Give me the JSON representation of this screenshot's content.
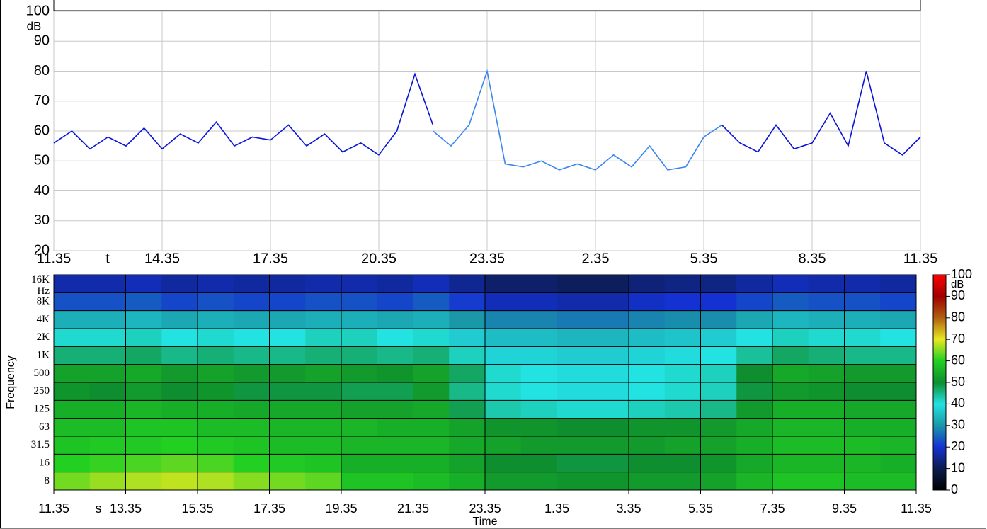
{
  "chart_data": [
    {
      "type": "line",
      "xlim": [
        0,
        24
      ],
      "xticks": [
        {
          "value": 0,
          "label": "11.35"
        },
        {
          "value": 3,
          "label": "14.35"
        },
        {
          "value": 6,
          "label": "17.35"
        },
        {
          "value": 9,
          "label": "20.35"
        },
        {
          "value": 12,
          "label": "23.35"
        },
        {
          "value": 15,
          "label": "2.35"
        },
        {
          "value": 18,
          "label": "5.35"
        },
        {
          "value": 21,
          "label": "8.35"
        },
        {
          "value": 24,
          "label": "11.35"
        }
      ],
      "x_unit": "t",
      "ylim": [
        20,
        100
      ],
      "yticks": [
        20,
        30,
        40,
        50,
        60,
        70,
        80,
        90,
        100
      ],
      "y_unit": "dB",
      "grid": true,
      "series": [
        {
          "color": "#0a14d8",
          "x": [
            0,
            0.5,
            1,
            1.5,
            2,
            2.5,
            3,
            3.5,
            4,
            4.5,
            5,
            5.5,
            6,
            6.5,
            7,
            7.5,
            8,
            8.5,
            9,
            9.5,
            10,
            10.5
          ],
          "values": [
            56,
            60,
            54,
            58,
            55,
            61,
            54,
            59,
            56,
            63,
            55,
            58,
            57,
            62,
            55,
            59,
            53,
            56,
            52,
            60,
            79,
            62
          ]
        },
        {
          "color": "#3a86f0",
          "x": [
            10.5,
            11,
            11.5,
            12,
            12.5,
            13,
            13.5,
            14,
            14.5,
            15,
            15.5,
            16,
            16.5,
            17,
            17.5,
            18,
            18.5
          ],
          "values": [
            60,
            55,
            62,
            80,
            49,
            48,
            50,
            47,
            49,
            47,
            52,
            48,
            55,
            47,
            48,
            58,
            62
          ]
        },
        {
          "color": "#0a14d8",
          "x": [
            18.5,
            19,
            19.5,
            20,
            20.5,
            21,
            21.5,
            22,
            22.5,
            23,
            23.5,
            24
          ],
          "values": [
            62,
            56,
            53,
            62,
            54,
            56,
            66,
            55,
            80,
            56,
            52,
            58
          ]
        }
      ]
    },
    {
      "type": "heatmap",
      "xlim": [
        0,
        24
      ],
      "x_edges": [
        0,
        1,
        2,
        3,
        4,
        5,
        6,
        7,
        8,
        9,
        10,
        11,
        12,
        13,
        14,
        15,
        16,
        17,
        18,
        19,
        20,
        21,
        22,
        23,
        24
      ],
      "xticks": [
        {
          "value": 0,
          "label": "11.35"
        },
        {
          "value": 2,
          "label": "13.35"
        },
        {
          "value": 4,
          "label": "15.35"
        },
        {
          "value": 6,
          "label": "17.35"
        },
        {
          "value": 8,
          "label": "19.35"
        },
        {
          "value": 10,
          "label": "21.35"
        },
        {
          "value": 12,
          "label": "23.35"
        },
        {
          "value": 14,
          "label": "1.35"
        },
        {
          "value": 16,
          "label": "3.35"
        },
        {
          "value": 18,
          "label": "5.35"
        },
        {
          "value": 20,
          "label": "7.35"
        },
        {
          "value": 22,
          "label": "9.35"
        },
        {
          "value": 24,
          "label": "11.35"
        }
      ],
      "x_unit": "s",
      "xlabel": "Time",
      "ylabel": "Frequency",
      "y_unit": "Hz",
      "rows": [
        "8",
        "16",
        "31.5",
        "63",
        "125",
        "250",
        "500",
        "1K",
        "2K",
        "4K",
        "8K",
        "16K"
      ],
      "values": [
        [
          64,
          66,
          67,
          68,
          67,
          65,
          64,
          63,
          58,
          58,
          57,
          55,
          52,
          52,
          51,
          51,
          52,
          52,
          53,
          56,
          58,
          58,
          57,
          57
        ],
        [
          60,
          61,
          62,
          63,
          62,
          60,
          59,
          58,
          55,
          55,
          55,
          53,
          50,
          50,
          49,
          49,
          50,
          50,
          51,
          54,
          56,
          56,
          56,
          55
        ],
        [
          58,
          59,
          59,
          60,
          59,
          58,
          57,
          57,
          56,
          56,
          56,
          54,
          53,
          52,
          52,
          52,
          52,
          53,
          53,
          55,
          57,
          57,
          57,
          56
        ],
        [
          57,
          57,
          58,
          58,
          57,
          57,
          56,
          56,
          56,
          55,
          55,
          53,
          51,
          51,
          50,
          50,
          51,
          51,
          52,
          54,
          56,
          56,
          55,
          55
        ],
        [
          55,
          55,
          56,
          55,
          55,
          54,
          54,
          54,
          53,
          53,
          54,
          48,
          43,
          42,
          41,
          41,
          42,
          43,
          45,
          52,
          55,
          55,
          54,
          54
        ],
        [
          51,
          50,
          52,
          50,
          51,
          49,
          49,
          49,
          48,
          48,
          52,
          45,
          41,
          40,
          39,
          39,
          40,
          41,
          42,
          49,
          52,
          51,
          50,
          50
        ],
        [
          53,
          53,
          54,
          52,
          53,
          52,
          52,
          53,
          52,
          51,
          53,
          47,
          41,
          40,
          39,
          39,
          40,
          41,
          42,
          50,
          54,
          53,
          52,
          52
        ],
        [
          46,
          46,
          47,
          45,
          46,
          45,
          45,
          46,
          46,
          45,
          46,
          42,
          38,
          38,
          37,
          37,
          38,
          39,
          40,
          44,
          47,
          46,
          45,
          45
        ],
        [
          41,
          41,
          42,
          40,
          41,
          40,
          40,
          42,
          42,
          40,
          41,
          37,
          35,
          35,
          34,
          34,
          35,
          36,
          37,
          40,
          42,
          41,
          41,
          40
        ],
        [
          33,
          33,
          34,
          32,
          33,
          32,
          32,
          33,
          33,
          32,
          33,
          30,
          28,
          28,
          27,
          27,
          28,
          29,
          29,
          32,
          34,
          33,
          33,
          32
        ],
        [
          23,
          23,
          24,
          22,
          23,
          22,
          22,
          23,
          23,
          22,
          24,
          21,
          18,
          18,
          17,
          17,
          19,
          20,
          20,
          22,
          24,
          23,
          23,
          22
        ],
        [
          17,
          17,
          18,
          16,
          17,
          16,
          16,
          17,
          17,
          16,
          18,
          15,
          12,
          12,
          11,
          11,
          13,
          14,
          14,
          16,
          18,
          17,
          17,
          16
        ]
      ],
      "colorbar": {
        "lim": [
          0,
          100
        ],
        "ticks": [
          0,
          10,
          20,
          30,
          40,
          50,
          60,
          70,
          80,
          90,
          100
        ],
        "unit": "dB"
      },
      "colormap": [
        [
          0,
          "#000000"
        ],
        [
          10,
          "#0c1c50"
        ],
        [
          20,
          "#1432d2"
        ],
        [
          30,
          "#1a98a8"
        ],
        [
          40,
          "#22e2e2"
        ],
        [
          50,
          "#0e8e2e"
        ],
        [
          60,
          "#22d022"
        ],
        [
          70,
          "#e8e820"
        ],
        [
          80,
          "#b06010"
        ],
        [
          90,
          "#a00000"
        ],
        [
          100,
          "#ff0000"
        ]
      ]
    }
  ]
}
